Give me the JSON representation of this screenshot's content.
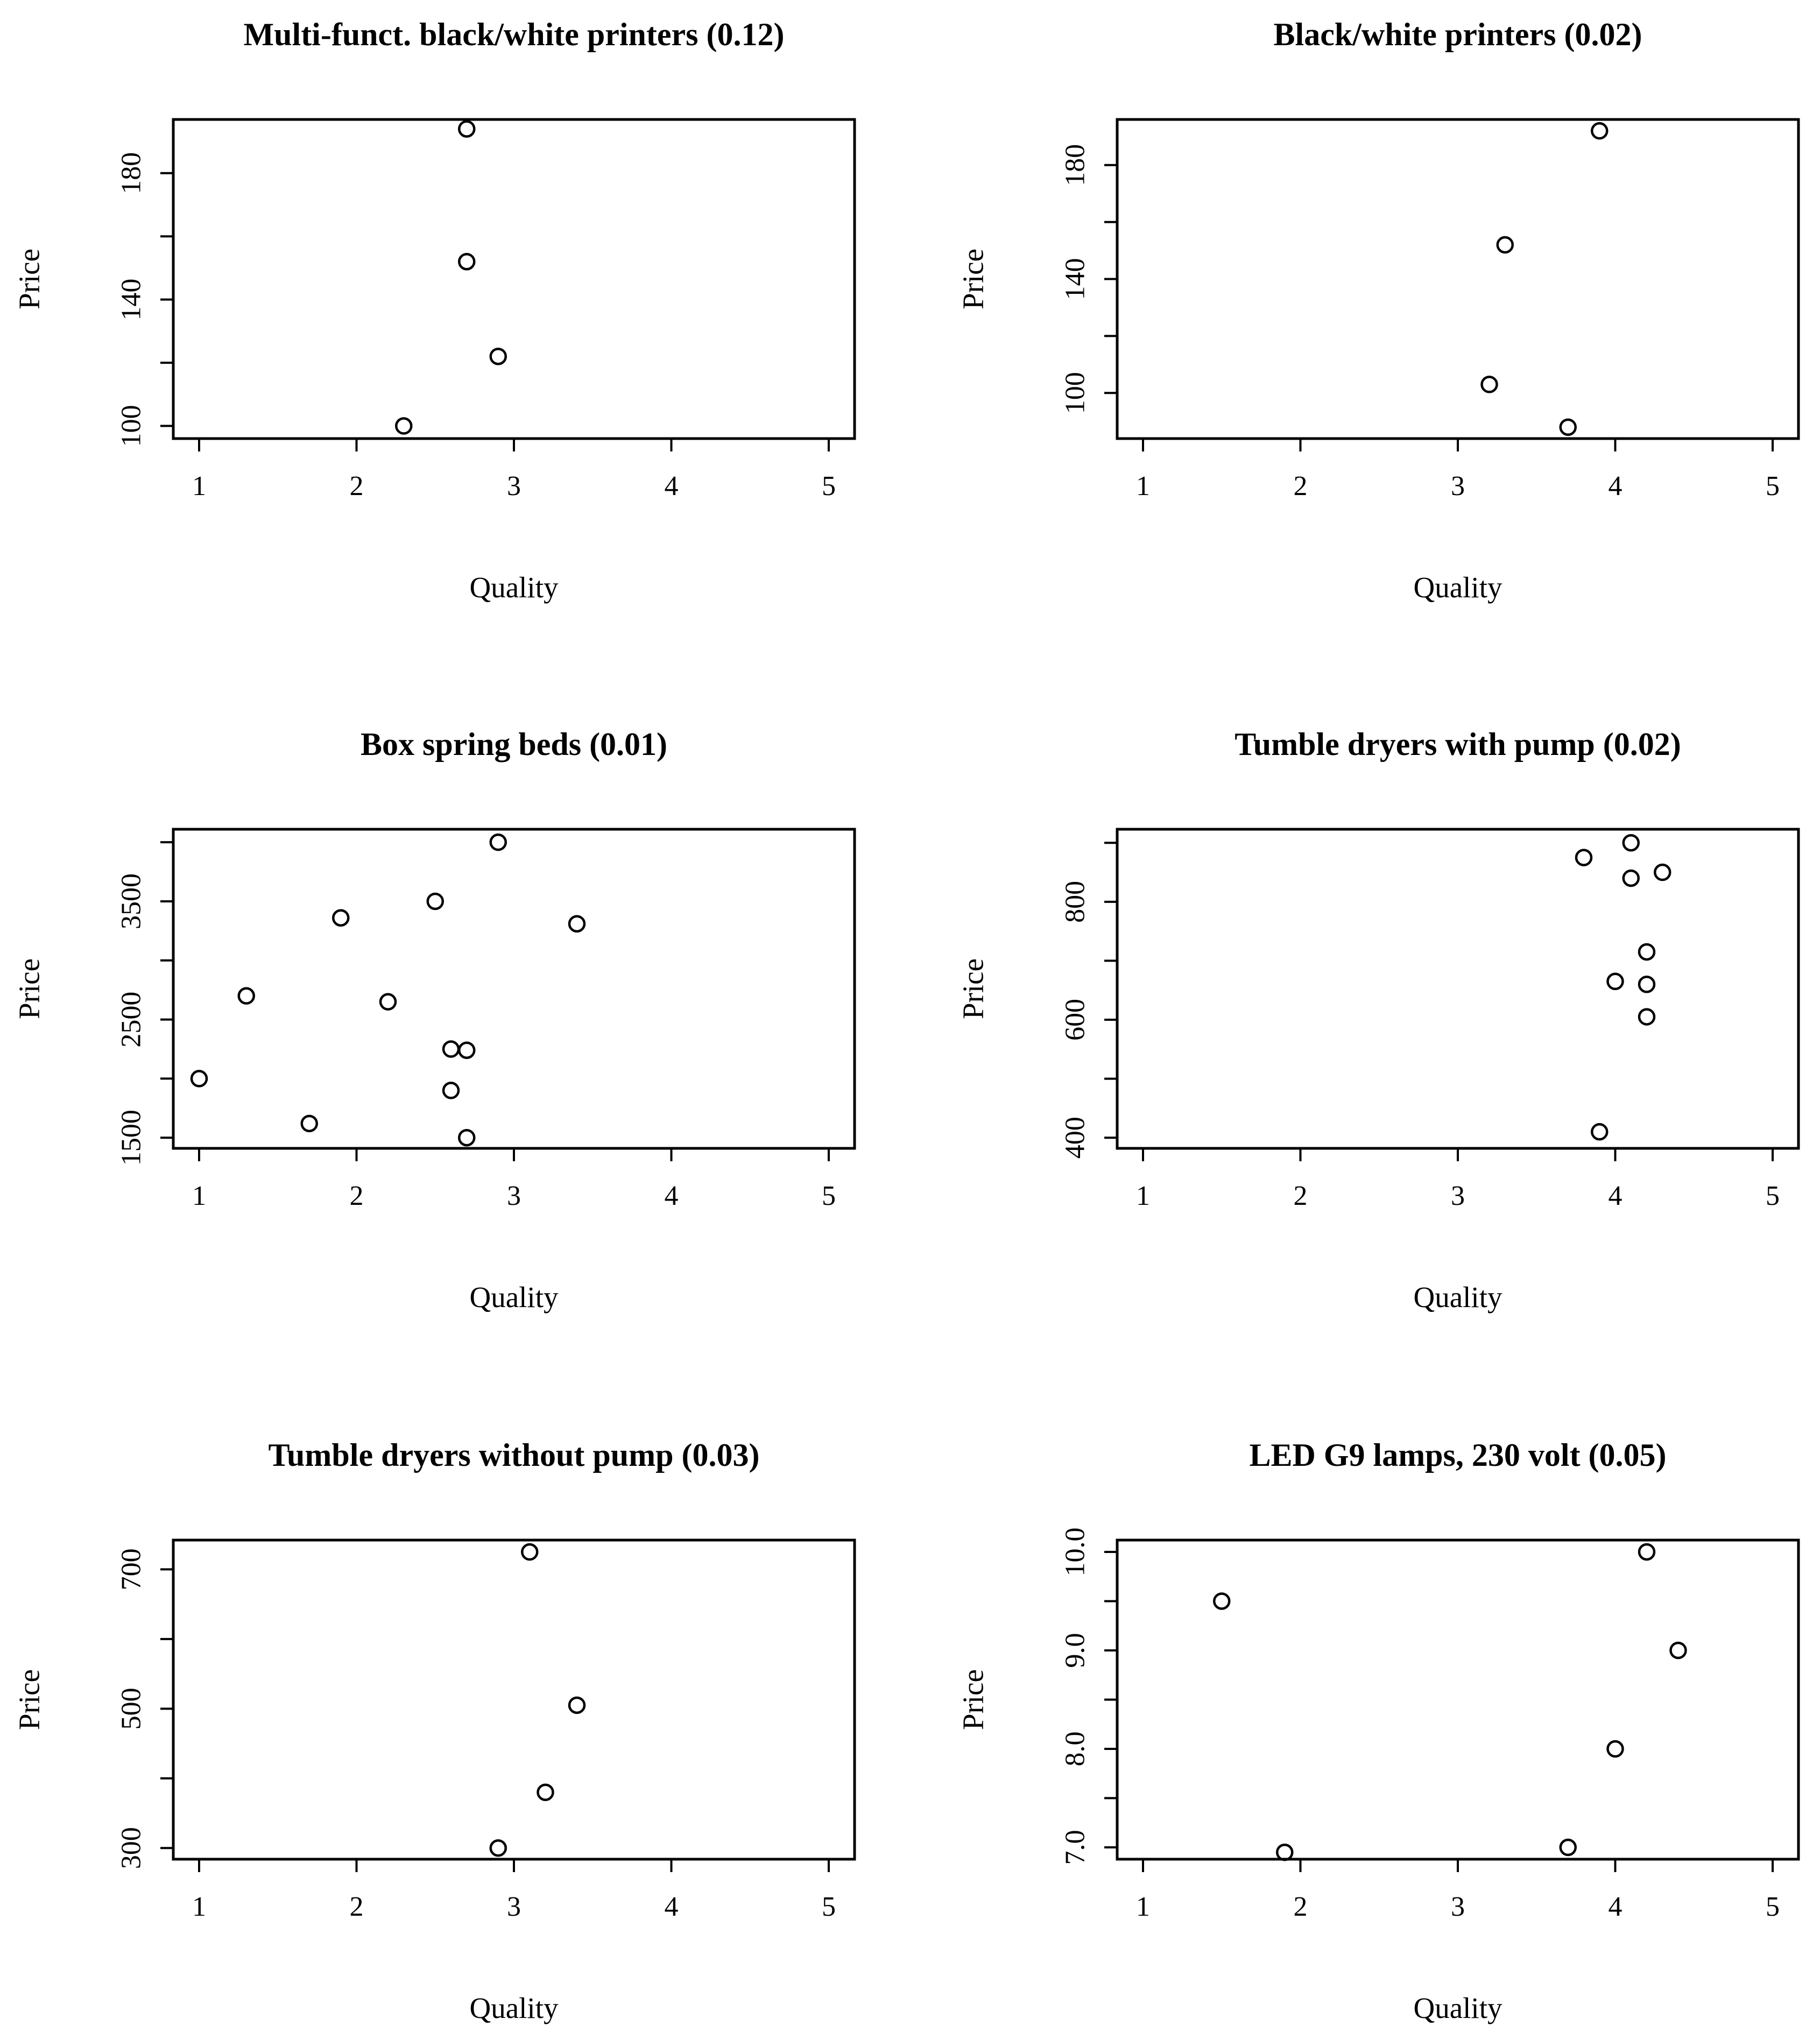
{
  "chart_data": [
    {
      "type": "scatter",
      "title": "Multi-funct. black/white printers (0.12)",
      "xlabel": "Quality",
      "ylabel": "Price",
      "xlim": [
        1,
        5
      ],
      "ylim": [
        96,
        197
      ],
      "x_ticks": [
        "1",
        "2",
        "3",
        "4",
        "5"
      ],
      "y_ticks": [
        "100",
        "140",
        "180"
      ],
      "y_tick_values": [
        100,
        120,
        140,
        160,
        180
      ],
      "points": [
        {
          "x": 2.3,
          "y": 100
        },
        {
          "x": 2.7,
          "y": 152
        },
        {
          "x": 2.7,
          "y": 194
        },
        {
          "x": 2.9,
          "y": 122
        }
      ]
    },
    {
      "type": "scatter",
      "title": "Black/white printers (0.02)",
      "xlabel": "Quality",
      "ylabel": "Price",
      "xlim": [
        1,
        5
      ],
      "ylim": [
        84,
        196
      ],
      "x_ticks": [
        "1",
        "2",
        "3",
        "4",
        "5"
      ],
      "y_ticks": [
        "100",
        "140",
        "180"
      ],
      "y_tick_values": [
        100,
        120,
        140,
        160,
        180
      ],
      "points": [
        {
          "x": 3.2,
          "y": 103
        },
        {
          "x": 3.3,
          "y": 152
        },
        {
          "x": 3.7,
          "y": 88
        },
        {
          "x": 3.9,
          "y": 192
        }
      ]
    },
    {
      "type": "scatter",
      "title": "Box spring beds (0.01)",
      "xlabel": "Quality",
      "ylabel": "Price",
      "xlim": [
        1,
        5
      ],
      "ylim": [
        1410,
        4110
      ],
      "x_ticks": [
        "1",
        "2",
        "3",
        "4",
        "5"
      ],
      "y_ticks": [
        "1500",
        "2500",
        "3500"
      ],
      "y_tick_values": [
        1500,
        2000,
        2500,
        3000,
        3500,
        4000
      ],
      "points": [
        {
          "x": 1.0,
          "y": 2000
        },
        {
          "x": 1.3,
          "y": 2700
        },
        {
          "x": 1.7,
          "y": 1620
        },
        {
          "x": 1.9,
          "y": 3360
        },
        {
          "x": 2.2,
          "y": 2650
        },
        {
          "x": 2.5,
          "y": 3500
        },
        {
          "x": 2.6,
          "y": 2250
        },
        {
          "x": 2.6,
          "y": 1900
        },
        {
          "x": 2.7,
          "y": 2240
        },
        {
          "x": 2.7,
          "y": 1500
        },
        {
          "x": 2.9,
          "y": 4000
        },
        {
          "x": 3.4,
          "y": 3310
        }
      ]
    },
    {
      "type": "scatter",
      "title": "Tumble dryers with pump (0.02)",
      "xlabel": "Quality",
      "ylabel": "Price",
      "xlim": [
        1,
        5
      ],
      "ylim": [
        382,
        923
      ],
      "x_ticks": [
        "1",
        "2",
        "3",
        "4",
        "5"
      ],
      "y_ticks": [
        "400",
        "600",
        "800"
      ],
      "y_tick_values": [
        400,
        500,
        600,
        700,
        800,
        900
      ],
      "points": [
        {
          "x": 3.8,
          "y": 875
        },
        {
          "x": 3.9,
          "y": 410
        },
        {
          "x": 4.0,
          "y": 665
        },
        {
          "x": 4.1,
          "y": 900
        },
        {
          "x": 4.1,
          "y": 840
        },
        {
          "x": 4.2,
          "y": 715
        },
        {
          "x": 4.2,
          "y": 660
        },
        {
          "x": 4.2,
          "y": 605
        },
        {
          "x": 4.3,
          "y": 850
        }
      ]
    },
    {
      "type": "scatter",
      "title": "Tumble dryers without pump (0.03)",
      "xlabel": "Quality",
      "ylabel": "Price",
      "xlim": [
        1,
        5
      ],
      "ylim": [
        284,
        742
      ],
      "x_ticks": [
        "1",
        "2",
        "3",
        "4",
        "5"
      ],
      "y_ticks": [
        "300",
        "500",
        "700"
      ],
      "y_tick_values": [
        300,
        400,
        500,
        600,
        700
      ],
      "points": [
        {
          "x": 2.9,
          "y": 300
        },
        {
          "x": 3.1,
          "y": 725
        },
        {
          "x": 3.2,
          "y": 380
        },
        {
          "x": 3.4,
          "y": 505
        }
      ]
    },
    {
      "type": "scatter",
      "title": "LED G9 lamps, 230 volt (0.05)",
      "xlabel": "Quality",
      "ylabel": "Price",
      "xlim": [
        1,
        5
      ],
      "ylim": [
        6.88,
        10.12
      ],
      "x_ticks": [
        "1",
        "2",
        "3",
        "4",
        "5"
      ],
      "y_ticks": [
        "7.0",
        "8.0",
        "9.0",
        "10.0"
      ],
      "y_tick_values": [
        7.0,
        7.5,
        8.0,
        8.5,
        9.0,
        9.5,
        10.0
      ],
      "points": [
        {
          "x": 1.5,
          "y": 9.5
        },
        {
          "x": 1.9,
          "y": 6.95
        },
        {
          "x": 3.7,
          "y": 7.0
        },
        {
          "x": 4.0,
          "y": 8.0
        },
        {
          "x": 4.2,
          "y": 10.0
        },
        {
          "x": 4.4,
          "y": 9.0
        }
      ]
    }
  ]
}
